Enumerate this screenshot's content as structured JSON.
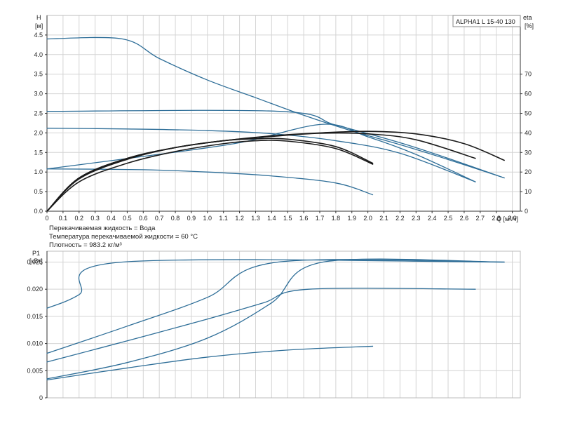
{
  "model_label": "ALPHA1 L 15-40  130",
  "notes": [
    "Перекачиваемая жидкость = Вода",
    "Температура перекачиваемой жидкости = 60 °C",
    "Плотность = 983.2 кг/м³"
  ],
  "colors": {
    "blue": "#2e6e98",
    "black": "#1a1a1a",
    "grid": "#d4d4d4"
  },
  "chart_data": [
    {
      "type": "line",
      "id": "head-curve",
      "x_axis": {
        "label": "Q [м³/ч]",
        "range": [
          0,
          2.95
        ],
        "ticks": [
          "0",
          "0.1",
          "0.2",
          "0.3",
          "0.4",
          "0.5",
          "0.6",
          "0.7",
          "0.8",
          "0.9",
          "1.0",
          "1.1",
          "1.2",
          "1.3",
          "1.4",
          "1.5",
          "1.6",
          "1.7",
          "1.8",
          "1.9",
          "2.0",
          "2.1",
          "2.2",
          "2.3",
          "2.4",
          "2.5",
          "2.6",
          "2.7",
          "2.8",
          "2.9"
        ]
      },
      "y_axis": {
        "label_line1": "H",
        "label_line2": "[м]",
        "range": [
          0,
          5.0
        ],
        "ticks": [
          "0.0",
          "0.5",
          "1.0",
          "1.5",
          "2.0",
          "2.5",
          "3.0",
          "3.5",
          "4.0",
          "4.5"
        ]
      },
      "y2_axis": {
        "label_line1": "eta",
        "label_line2": "[%]",
        "range": [
          0,
          100
        ],
        "ticks": [
          "0",
          "10",
          "20",
          "30",
          "40",
          "50",
          "60",
          "70"
        ]
      },
      "grid": true,
      "series": [
        {
          "axis": "y",
          "color": "blue",
          "points": [
            [
              0,
              4.4
            ],
            [
              0.47,
              4.4
            ],
            [
              0.7,
              3.9
            ],
            [
              1.0,
              3.35
            ],
            [
              1.3,
              2.9
            ],
            [
              1.6,
              2.45
            ],
            [
              1.9,
              2.05
            ],
            [
              2.2,
              1.7
            ],
            [
              2.5,
              1.32
            ],
            [
              2.85,
              0.85
            ]
          ]
        },
        {
          "axis": "y",
          "color": "blue",
          "points": [
            [
              0,
              2.55
            ],
            [
              1.45,
              2.55
            ],
            [
              1.8,
              2.2
            ],
            [
              2.2,
              1.75
            ],
            [
              2.5,
              1.35
            ],
            [
              2.85,
              0.85
            ]
          ]
        },
        {
          "axis": "y",
          "color": "blue",
          "points": [
            [
              0,
              1.08
            ],
            [
              0.6,
              1.4
            ],
            [
              1.2,
              1.75
            ],
            [
              1.72,
              2.22
            ],
            [
              2.0,
              1.9
            ],
            [
              2.3,
              1.45
            ],
            [
              2.67,
              0.75
            ]
          ]
        },
        {
          "axis": "y",
          "color": "blue",
          "points": [
            [
              0,
              2.12
            ],
            [
              0.5,
              2.1
            ],
            [
              1.0,
              2.06
            ],
            [
              1.4,
              1.98
            ],
            [
              1.8,
              1.8
            ],
            [
              2.2,
              1.48
            ],
            [
              2.67,
              0.75
            ]
          ]
        },
        {
          "axis": "y",
          "color": "blue",
          "points": [
            [
              0,
              1.08
            ],
            [
              0.6,
              1.06
            ],
            [
              1.0,
              1.0
            ],
            [
              1.4,
              0.9
            ],
            [
              1.8,
              0.72
            ],
            [
              2.03,
              0.42
            ]
          ]
        },
        {
          "axis": "y2",
          "color": "black",
          "points": [
            [
              0,
              0
            ],
            [
              0.2,
              17
            ],
            [
              0.5,
              27
            ],
            [
              0.8,
              32.5
            ],
            [
              1.1,
              36
            ],
            [
              1.4,
              38.5
            ],
            [
              1.7,
              40
            ],
            [
              2.0,
              40.8
            ],
            [
              2.3,
              39.5
            ],
            [
              2.6,
              34.5
            ],
            [
              2.85,
              26
            ]
          ]
        },
        {
          "axis": "y2",
          "color": "black",
          "points": [
            [
              0,
              0
            ],
            [
              0.2,
              17
            ],
            [
              0.5,
              27
            ],
            [
              0.8,
              32.5
            ],
            [
              1.1,
              36
            ],
            [
              1.4,
              38.2
            ],
            [
              1.7,
              39.8
            ],
            [
              2.0,
              39.5
            ],
            [
              2.3,
              36.5
            ],
            [
              2.67,
              27
            ]
          ]
        },
        {
          "axis": "y2",
          "color": "black",
          "points": [
            [
              0,
              0
            ],
            [
              0.2,
              16.5
            ],
            [
              0.5,
              26.5
            ],
            [
              0.8,
              32.5
            ],
            [
              1.1,
              36
            ],
            [
              1.3,
              37
            ],
            [
              1.5,
              36.8
            ],
            [
              1.8,
              33
            ],
            [
              2.03,
              24.5
            ]
          ]
        },
        {
          "axis": "y2",
          "color": "black",
          "points": [
            [
              0,
              0
            ],
            [
              0.2,
              15
            ],
            [
              0.5,
              24.5
            ],
            [
              0.8,
              30.5
            ],
            [
              1.1,
              34.5
            ],
            [
              1.3,
              36
            ],
            [
              1.5,
              35.8
            ],
            [
              1.8,
              32
            ],
            [
              2.03,
              24
            ]
          ]
        }
      ]
    },
    {
      "type": "line",
      "id": "power-curve",
      "x_axis": {
        "range": [
          0,
          2.95
        ]
      },
      "y_axis": {
        "label_line1": "P1",
        "label_line2": "[кВт]",
        "range": [
          0,
          0.027
        ],
        "ticks": [
          "0",
          "0.005",
          "0.010",
          "0.015",
          "0.020",
          "0.025"
        ]
      },
      "grid": true,
      "series": [
        {
          "color": "blue",
          "points": [
            [
              0,
              0.0165
            ],
            [
              0.2,
              0.019
            ],
            [
              0.47,
              0.025
            ],
            [
              2.85,
              0.025
            ]
          ]
        },
        {
          "color": "blue",
          "points": [
            [
              0,
              0.0082
            ],
            [
              0.5,
              0.0132
            ],
            [
              1.0,
              0.0185
            ],
            [
              1.44,
              0.025
            ],
            [
              2.85,
              0.025
            ]
          ]
        },
        {
          "color": "blue",
          "points": [
            [
              0,
              0.0066
            ],
            [
              0.5,
              0.0105
            ],
            [
              1.0,
              0.0145
            ],
            [
              1.35,
              0.0175
            ],
            [
              1.63,
              0.02
            ],
            [
              2.67,
              0.02
            ]
          ]
        },
        {
          "color": "blue",
          "points": [
            [
              0,
              0.0035
            ],
            [
              0.5,
              0.0065
            ],
            [
              1.0,
              0.011
            ],
            [
              1.4,
              0.0175
            ],
            [
              1.72,
              0.025
            ],
            [
              2.85,
              0.025
            ]
          ]
        },
        {
          "color": "blue",
          "points": [
            [
              0,
              0.0033
            ],
            [
              0.5,
              0.0055
            ],
            [
              1.0,
              0.0075
            ],
            [
              1.5,
              0.0088
            ],
            [
              2.03,
              0.0095
            ]
          ]
        }
      ]
    }
  ]
}
